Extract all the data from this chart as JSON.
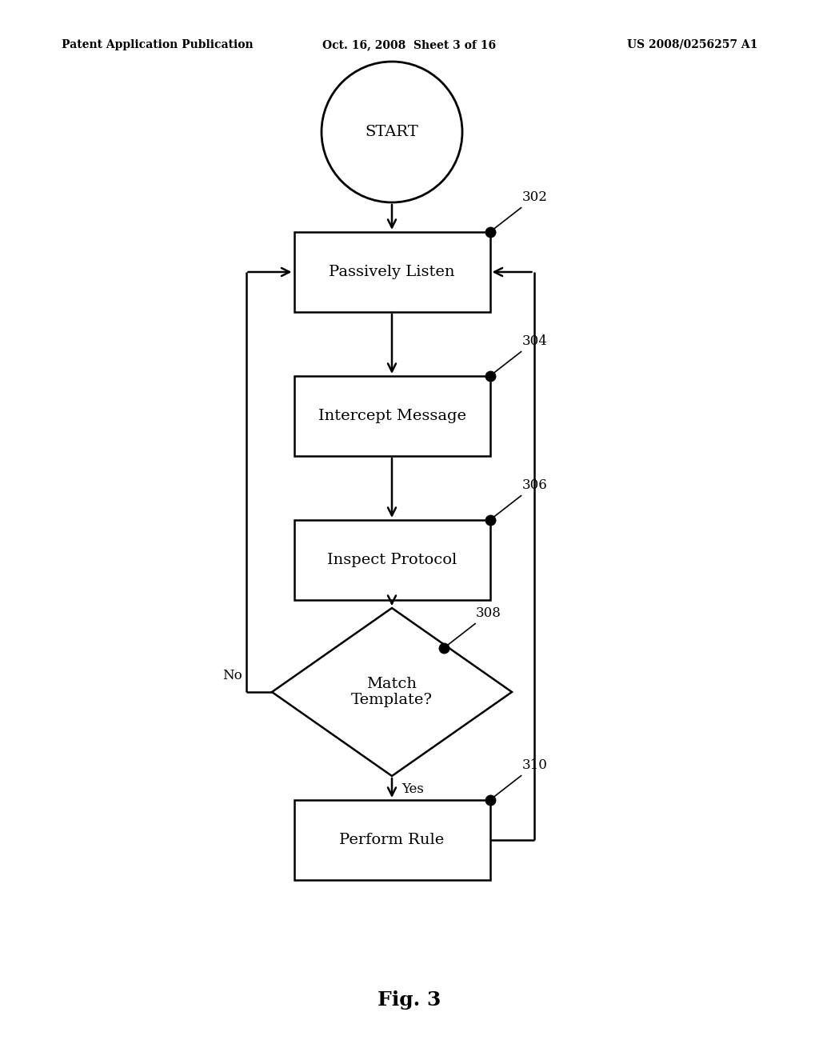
{
  "title_left": "Patent Application Publication",
  "title_center": "Oct. 16, 2008  Sheet 3 of 16",
  "title_right": "US 2008/0256257 A1",
  "fig_label": "Fig. 3",
  "start_label": "START",
  "boxes": [
    {
      "id": "passively_listen",
      "label": "Passively Listen",
      "ref": "302"
    },
    {
      "id": "intercept_message",
      "label": "Intercept Message",
      "ref": "304"
    },
    {
      "id": "inspect_protocol",
      "label": "Inspect Protocol",
      "ref": "306"
    }
  ],
  "diamond": {
    "id": "match_template",
    "label": "Match\nTemplate?",
    "ref": "308"
  },
  "perform_rule": {
    "id": "perform_rule",
    "label": "Perform Rule",
    "ref": "310"
  },
  "no_label": "No",
  "yes_label": "Yes",
  "bg_color": "#ffffff",
  "box_color": "#ffffff",
  "box_edge": "#000000",
  "text_color": "#000000",
  "arrow_color": "#000000",
  "dot_color": "#000000",
  "header_fontsize": 10,
  "label_fontsize": 14,
  "ref_fontsize": 12,
  "fig_fontsize": 18
}
